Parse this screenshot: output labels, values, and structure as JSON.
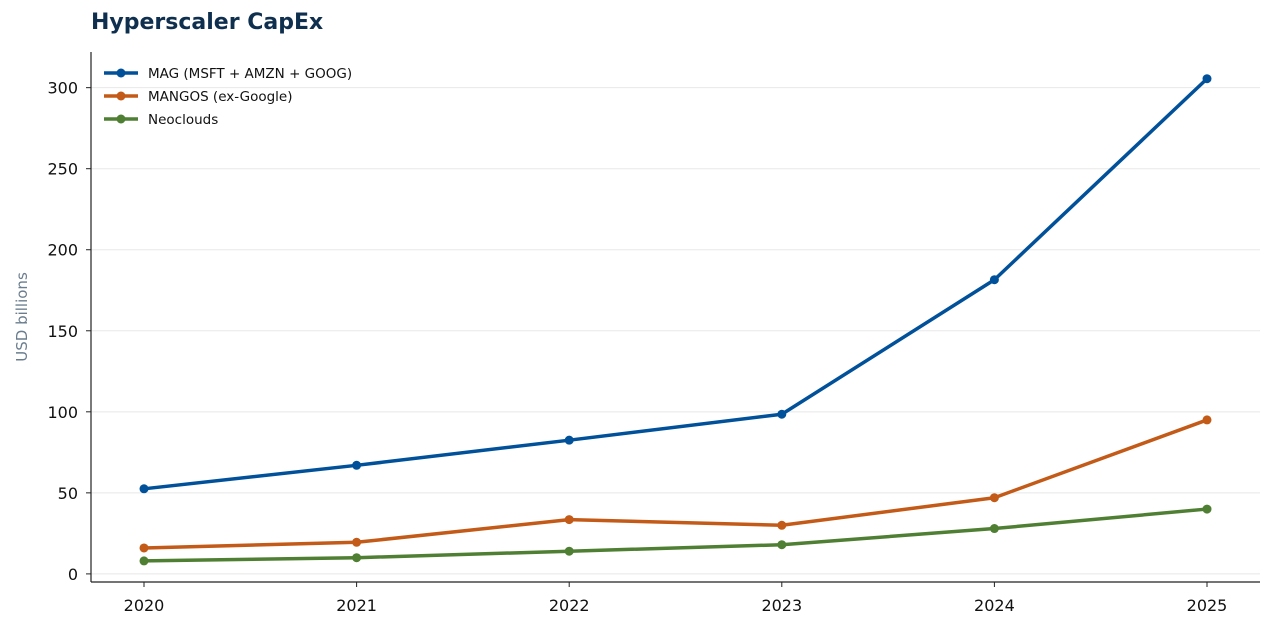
{
  "chart_data": {
    "type": "line",
    "title": "Hyperscaler CapEx",
    "xlabel": "",
    "ylabel": "USD billions",
    "categories": [
      "2020",
      "2021",
      "2022",
      "2023",
      "2024",
      "2025"
    ],
    "ylim": [
      -5,
      322
    ],
    "yticks": [
      0,
      50,
      100,
      150,
      200,
      250,
      300
    ],
    "grid": "horizontal",
    "legend_position": "top-left",
    "series": [
      {
        "name": "MAG (MSFT + AMZN + GOOG)",
        "color": "#00519a",
        "values": [
          52.5,
          67,
          82.5,
          98.5,
          181.5,
          305.5
        ]
      },
      {
        "name": "MANGOS (ex-Google)",
        "color": "#c35a17",
        "values": [
          16,
          19.5,
          33.5,
          30,
          47,
          95
        ]
      },
      {
        "name": "Neoclouds",
        "color": "#4f7f33",
        "values": [
          8,
          10,
          14,
          18,
          28,
          40
        ]
      }
    ]
  }
}
